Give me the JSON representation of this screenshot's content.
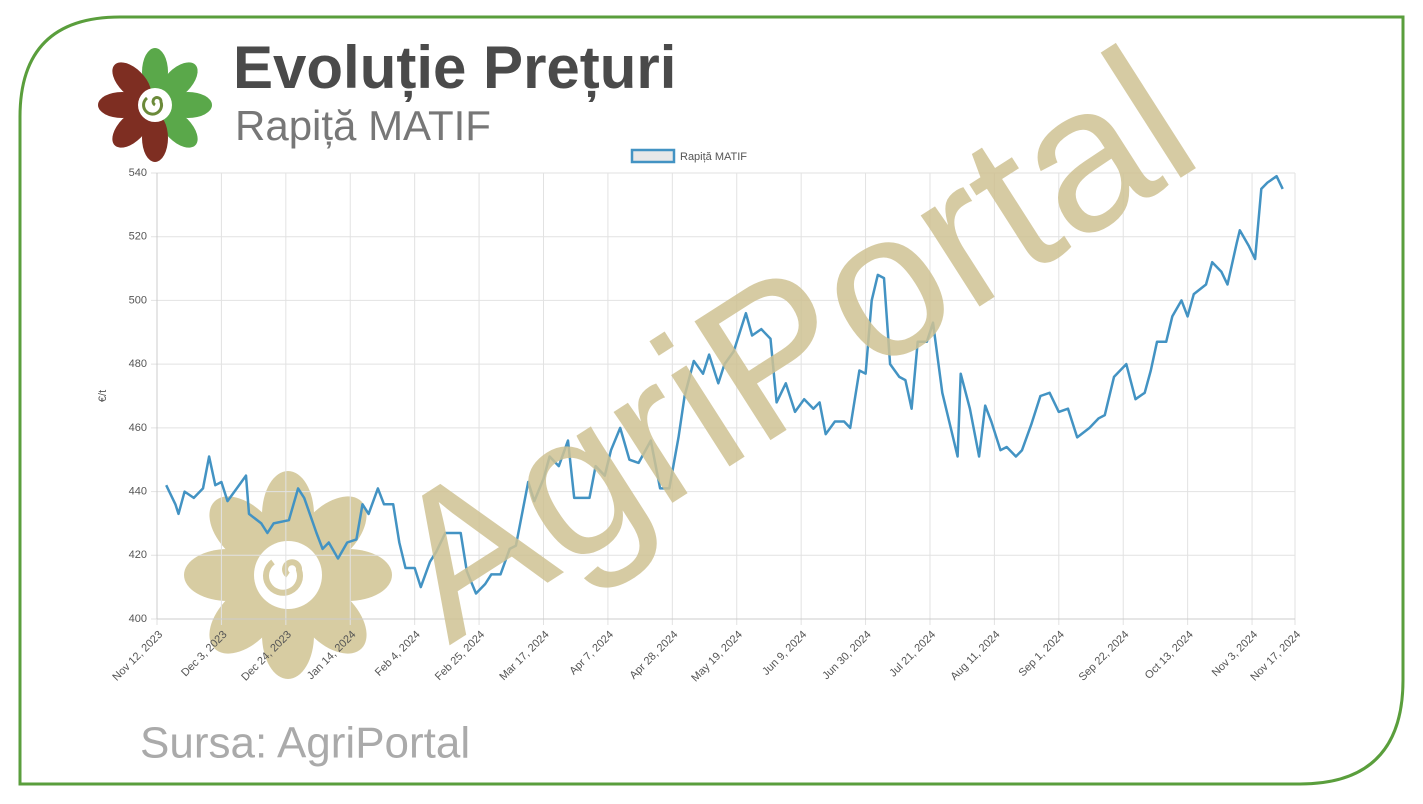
{
  "title": "Evoluție Prețuri",
  "subtitle": "Rapiță MATIF",
  "source": "Sursa: AgriPortal",
  "watermark": "AgriPortal",
  "chart_data": {
    "type": "line",
    "ylabel": "€/t",
    "x": [
      "2023-11-15",
      "2023-11-18",
      "2023-11-19",
      "2023-11-21",
      "2023-11-24",
      "2023-11-27",
      "2023-11-29",
      "2023-12-01",
      "2023-12-03",
      "2023-12-05",
      "2023-12-08",
      "2023-12-11",
      "2023-12-12",
      "2023-12-16",
      "2023-12-18",
      "2023-12-20",
      "2023-12-25",
      "2023-12-28",
      "2023-12-30",
      "2024-01-03",
      "2024-01-05",
      "2024-01-07",
      "2024-01-10",
      "2024-01-13",
      "2024-01-16",
      "2024-01-18",
      "2024-01-20",
      "2024-01-23",
      "2024-01-25",
      "2024-01-28",
      "2024-01-30",
      "2024-02-01",
      "2024-02-04",
      "2024-02-06",
      "2024-02-09",
      "2024-02-11",
      "2024-02-14",
      "2024-02-17",
      "2024-02-19",
      "2024-02-21",
      "2024-02-24",
      "2024-02-27",
      "2024-02-29",
      "2024-03-03",
      "2024-03-06",
      "2024-03-08",
      "2024-03-12",
      "2024-03-14",
      "2024-03-17",
      "2024-03-19",
      "2024-03-22",
      "2024-03-25",
      "2024-03-27",
      "2024-04-01",
      "2024-04-03",
      "2024-04-06",
      "2024-04-08",
      "2024-04-11",
      "2024-04-14",
      "2024-04-17",
      "2024-04-21",
      "2024-04-24",
      "2024-04-27",
      "2024-04-30",
      "2024-05-02",
      "2024-05-05",
      "2024-05-08",
      "2024-05-10",
      "2024-05-13",
      "2024-05-15",
      "2024-05-18",
      "2024-05-22",
      "2024-05-24",
      "2024-05-27",
      "2024-05-28",
      "2024-05-30",
      "2024-06-01",
      "2024-06-04",
      "2024-06-07",
      "2024-06-10",
      "2024-06-13",
      "2024-06-15",
      "2024-06-17",
      "2024-06-20",
      "2024-06-23",
      "2024-06-25",
      "2024-06-28",
      "2024-06-30",
      "2024-07-02",
      "2024-07-04",
      "2024-07-06",
      "2024-07-08",
      "2024-07-11",
      "2024-07-13",
      "2024-07-15",
      "2024-07-17",
      "2024-07-20",
      "2024-07-22",
      "2024-07-25",
      "2024-07-28",
      "2024-07-30",
      "2024-07-31",
      "2024-08-03",
      "2024-08-06",
      "2024-08-08",
      "2024-08-10",
      "2024-08-13",
      "2024-08-15",
      "2024-08-18",
      "2024-08-20",
      "2024-08-23",
      "2024-08-26",
      "2024-08-29",
      "2024-09-01",
      "2024-09-04",
      "2024-09-07",
      "2024-09-11",
      "2024-09-14",
      "2024-09-16",
      "2024-09-19",
      "2024-09-23",
      "2024-09-26",
      "2024-09-29",
      "2024-10-01",
      "2024-10-03",
      "2024-10-06",
      "2024-10-08",
      "2024-10-11",
      "2024-10-13",
      "2024-10-15",
      "2024-10-19",
      "2024-10-21",
      "2024-10-24",
      "2024-10-26",
      "2024-10-29",
      "2024-10-30",
      "2024-11-02",
      "2024-11-04",
      "2024-11-06",
      "2024-11-08",
      "2024-11-11",
      "2024-11-13"
    ],
    "series": [
      {
        "name": "Rapiță MATIF",
        "color": "#4393c3",
        "values": [
          442,
          436,
          433,
          440,
          438,
          441,
          451,
          442,
          443,
          437,
          441,
          445,
          433,
          430,
          427,
          430,
          431,
          441,
          438,
          427,
          422,
          424,
          419,
          424,
          425,
          436,
          433,
          441,
          436,
          436,
          424,
          416,
          416,
          410,
          418,
          421,
          427,
          427,
          427,
          415,
          408,
          411,
          414,
          414,
          422,
          423,
          443,
          437,
          444,
          451,
          448,
          456,
          438,
          438,
          448,
          445,
          453,
          460,
          450,
          449,
          456,
          441,
          441,
          457,
          470,
          481,
          477,
          483,
          474,
          480,
          484,
          496,
          489,
          491,
          490,
          488,
          468,
          474,
          465,
          469,
          466,
          468,
          458,
          462,
          462,
          460,
          478,
          477,
          500,
          508,
          507,
          480,
          476,
          475,
          466,
          487,
          487,
          493,
          471,
          459,
          451,
          477,
          466,
          451,
          467,
          462,
          453,
          454,
          451,
          453,
          461,
          470,
          471,
          465,
          466,
          457,
          460,
          463,
          464,
          476,
          480,
          469,
          471,
          478,
          487,
          487,
          495,
          500,
          495,
          502,
          505,
          512,
          509,
          505,
          518,
          522,
          517,
          513,
          535,
          537,
          539,
          535
        ]
      }
    ],
    "xlim": [
      "2023-11-12",
      "2024-11-17"
    ],
    "xticks": [
      {
        "value": "2023-11-12",
        "label": "Nov 12, 2023"
      },
      {
        "value": "2023-12-03",
        "label": "Dec 3, 2023"
      },
      {
        "value": "2023-12-24",
        "label": "Dec 24, 2023"
      },
      {
        "value": "2024-01-14",
        "label": "Jan 14, 2024"
      },
      {
        "value": "2024-02-04",
        "label": "Feb 4, 2024"
      },
      {
        "value": "2024-02-25",
        "label": "Feb 25, 2024"
      },
      {
        "value": "2024-03-17",
        "label": "Mar 17, 2024"
      },
      {
        "value": "2024-04-07",
        "label": "Apr 7, 2024"
      },
      {
        "value": "2024-04-28",
        "label": "Apr 28, 2024"
      },
      {
        "value": "2024-05-19",
        "label": "May 19, 2024"
      },
      {
        "value": "2024-06-09",
        "label": "Jun 9, 2024"
      },
      {
        "value": "2024-06-30",
        "label": "Jun 30, 2024"
      },
      {
        "value": "2024-07-21",
        "label": "Jul 21, 2024"
      },
      {
        "value": "2024-08-11",
        "label": "Aug 11, 2024"
      },
      {
        "value": "2024-09-01",
        "label": "Sep 1, 2024"
      },
      {
        "value": "2024-09-22",
        "label": "Sep 22, 2024"
      },
      {
        "value": "2024-10-13",
        "label": "Oct 13, 2024"
      },
      {
        "value": "2024-11-03",
        "label": "Nov 3, 2024"
      },
      {
        "value": "2024-11-17",
        "label": "Nov 17, 2024"
      }
    ],
    "ylim": [
      400,
      540
    ],
    "yticks": [
      400,
      420,
      440,
      460,
      480,
      500,
      520,
      540
    ],
    "grid": true,
    "legend": "top"
  }
}
